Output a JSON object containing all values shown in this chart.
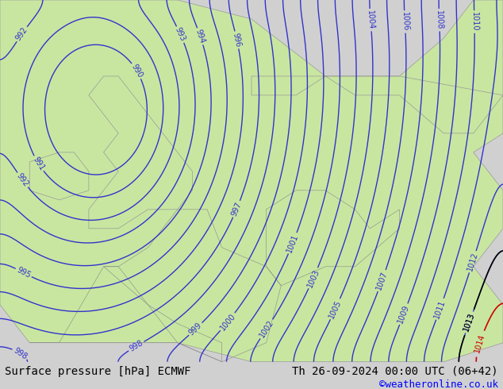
{
  "title_left": "Surface pressure [hPa] ECMWF",
  "title_right": "Th 26-09-2024 00:00 UTC (06+42)",
  "credit": "©weatheronline.co.uk",
  "bg_color": "#d0d0d0",
  "land_color": "#c8e6a0",
  "sea_color": "#e8e8f0",
  "contour_color_blue": "#3333cc",
  "contour_color_black": "#000000",
  "contour_color_red": "#cc0000",
  "font_size_label": 11,
  "font_size_footer": 10,
  "font_size_credit": 9,
  "label_fontsize": 7,
  "figsize": [
    6.34,
    4.9
  ],
  "dpi": 100
}
